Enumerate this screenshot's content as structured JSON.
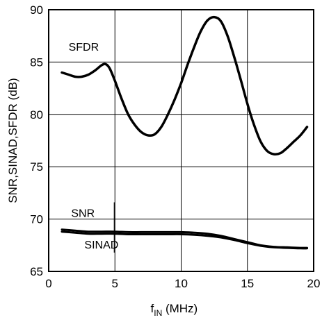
{
  "chart_data": {
    "type": "line",
    "xlabel_main": "f",
    "xlabel_sub": "IN",
    "xlabel_unit": " (MHz)",
    "ylabel": "SNR,SINAD,SFDR (dB)",
    "xlim": [
      0,
      20
    ],
    "ylim": [
      65,
      90
    ],
    "xticks": [
      0,
      5,
      10,
      15,
      20
    ],
    "yticks": [
      65,
      70,
      75,
      80,
      85,
      90
    ],
    "grid": true,
    "series": [
      {
        "name": "SFDR",
        "x": [
          1,
          1.5,
          2,
          2.5,
          3,
          3.5,
          4,
          4.3,
          4.6,
          5,
          5.5,
          6,
          6.5,
          7,
          7.5,
          8,
          8.5,
          9,
          9.5,
          10,
          10.5,
          11,
          11.5,
          12,
          12.5,
          13,
          13.5,
          14,
          14.5,
          15,
          15.5,
          16,
          16.5,
          17,
          17.5,
          18,
          18.5,
          19,
          19.5
        ],
        "values": [
          84.0,
          83.8,
          83.6,
          83.6,
          83.8,
          84.2,
          84.7,
          84.8,
          84.4,
          83.2,
          81.5,
          80.0,
          79.0,
          78.3,
          78.0,
          78.1,
          78.8,
          80.0,
          81.4,
          83.0,
          84.8,
          86.5,
          88.0,
          89.0,
          89.3,
          88.9,
          87.5,
          85.5,
          83.3,
          81.0,
          79.0,
          77.4,
          76.5,
          76.2,
          76.3,
          76.8,
          77.4,
          78.0,
          78.8
        ]
      },
      {
        "name": "SNR",
        "x": [
          1,
          2,
          3,
          4,
          5,
          6,
          7,
          8,
          9,
          10,
          11,
          12,
          13,
          14,
          15,
          16,
          17,
          18,
          19,
          19.5
        ],
        "values": [
          69.0,
          68.9,
          68.8,
          68.8,
          68.8,
          68.75,
          68.75,
          68.75,
          68.75,
          68.75,
          68.7,
          68.6,
          68.4,
          68.1,
          67.8,
          67.5,
          67.35,
          67.3,
          67.25,
          67.25
        ]
      },
      {
        "name": "SINAD",
        "x": [
          1,
          2,
          3,
          4,
          5,
          6,
          7,
          8,
          9,
          10,
          11,
          12,
          13,
          14,
          15,
          16,
          17,
          18,
          19,
          19.5
        ],
        "values": [
          68.8,
          68.7,
          68.6,
          68.6,
          68.6,
          68.55,
          68.55,
          68.55,
          68.55,
          68.55,
          68.5,
          68.4,
          68.25,
          68.0,
          67.7,
          67.45,
          67.3,
          67.25,
          67.2,
          67.2
        ]
      }
    ]
  }
}
